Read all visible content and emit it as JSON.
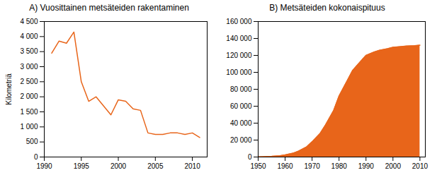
{
  "chart_data": [
    {
      "type": "line",
      "title": "A) Vuosittainen metsäteiden rakentaminen",
      "ylabel": "Kilometriä",
      "x": [
        1991,
        1992,
        1993,
        1994,
        1995,
        1996,
        1997,
        1998,
        1999,
        2000,
        2001,
        2002,
        2003,
        2004,
        2005,
        2006,
        2007,
        2008,
        2009,
        2010,
        2011
      ],
      "values": [
        3450,
        3850,
        3780,
        4150,
        2500,
        1850,
        2000,
        1700,
        1400,
        1900,
        1850,
        1600,
        1550,
        800,
        750,
        750,
        800,
        800,
        750,
        800,
        650
      ],
      "color": "#e8651a",
      "xlim": [
        1990,
        2012
      ],
      "ylim": [
        0,
        4500
      ],
      "xticks": [
        1990,
        1995,
        2000,
        2005,
        2010
      ],
      "yticks": [
        0,
        500,
        {
          "value": 1000,
          "label": "1 000"
        },
        {
          "value": 1500,
          "label": "1 500"
        },
        {
          "value": 2000,
          "label": "2 000"
        },
        {
          "value": 2500,
          "label": "2 500"
        },
        {
          "value": 3000,
          "label": "3 000"
        },
        {
          "value": 3500,
          "label": "3 500"
        },
        {
          "value": 4000,
          "label": "4 000"
        },
        {
          "value": 4500,
          "label": "4 500"
        }
      ]
    },
    {
      "type": "area",
      "title": "B) Metsäteiden kokonaispituus",
      "x": [
        1950,
        1952,
        1955,
        1958,
        1960,
        1963,
        1965,
        1968,
        1970,
        1973,
        1975,
        1978,
        1980,
        1983,
        1985,
        1988,
        1990,
        1993,
        1995,
        1998,
        2000,
        2003,
        2005,
        2008,
        2010
      ],
      "values": [
        200,
        400,
        800,
        1500,
        2500,
        4500,
        7000,
        12000,
        18000,
        28000,
        38000,
        55000,
        72000,
        90000,
        102000,
        113000,
        120000,
        124000,
        126000,
        128000,
        129500,
        130500,
        131000,
        131500,
        132000
      ],
      "color": "#e8651a",
      "xlim": [
        1950,
        2012
      ],
      "ylim": [
        0,
        160000
      ],
      "xticks": [
        1950,
        1960,
        1970,
        1980,
        1990,
        2000,
        2010
      ],
      "yticks": [
        0,
        {
          "value": 20000,
          "label": "20 000"
        },
        {
          "value": 40000,
          "label": "40 000"
        },
        {
          "value": 60000,
          "label": "60 000"
        },
        {
          "value": 80000,
          "label": "80 000"
        },
        {
          "value": 100000,
          "label": "100 000"
        },
        {
          "value": 120000,
          "label": "120 000"
        },
        {
          "value": 140000,
          "label": "140 000"
        },
        {
          "value": 160000,
          "label": "160 000"
        }
      ]
    }
  ]
}
